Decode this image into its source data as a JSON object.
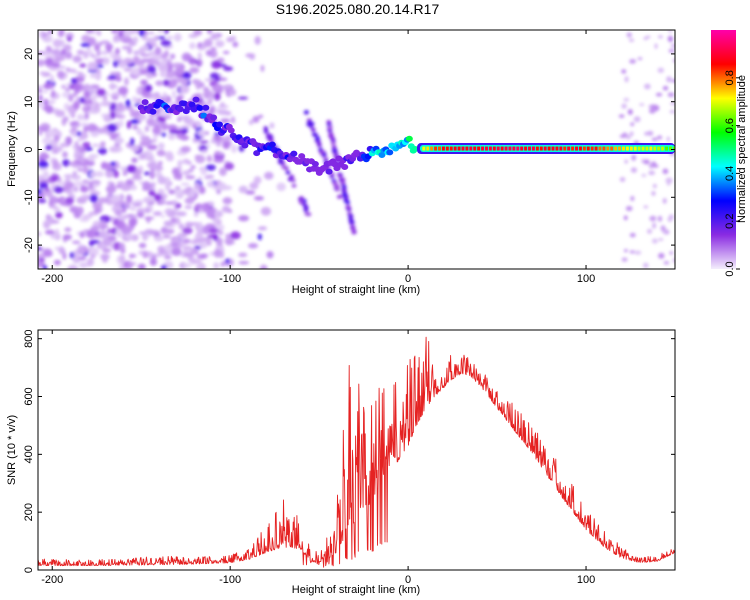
{
  "title": "S196.2025.080.20.14.R17",
  "chart_data": [
    {
      "type": "heatmap",
      "title": "S196.2025.080.20.14.R17",
      "xlabel": "Height of straight line (km)",
      "ylabel": "Frequency (Hz)",
      "xlim": [
        -208,
        150
      ],
      "ylim": [
        -25,
        25
      ],
      "xticks": [
        -200,
        -100,
        0,
        100
      ],
      "yticks": [
        -20,
        -10,
        0,
        10,
        20
      ],
      "grid": false,
      "colorbar": {
        "label": "Normalized spectral amplitude",
        "range": [
          0,
          1
        ],
        "ticks": [
          "0.0",
          "0.2",
          "0.4",
          "0.6",
          "0.8"
        ],
        "colors": [
          "#f4eefc",
          "#8a2be2",
          "#0000ff",
          "#00ffff",
          "#00ff00",
          "#ffff00",
          "#ff0000",
          "#ff00aa"
        ]
      },
      "ridge": {
        "x": [
          -150,
          -140,
          -130,
          -120,
          -110,
          -100,
          -90,
          -80,
          -70,
          -60,
          -50,
          -40,
          -30,
          -20,
          -10,
          0,
          10,
          20,
          40,
          60,
          80,
          100,
          120,
          150
        ],
        "frequency": [
          9,
          9.5,
          8.5,
          9.5,
          6,
          3,
          1.5,
          0.5,
          -1,
          -2,
          -4.5,
          -3,
          -2,
          -1,
          0,
          1.5,
          0,
          0,
          0,
          0,
          0,
          0,
          0,
          0
        ],
        "amplitude": [
          0.35,
          0.4,
          0.3,
          0.4,
          0.3,
          0.35,
          0.35,
          0.4,
          0.35,
          0.3,
          0.25,
          0.25,
          0.3,
          0.45,
          0.55,
          0.6,
          0.75,
          0.85,
          0.9,
          0.9,
          0.88,
          0.85,
          0.75,
          0.6
        ]
      }
    },
    {
      "type": "line",
      "xlabel": "Height of straight line (km)",
      "ylabel": "SNR (10 * v/v)",
      "xlim": [
        -208,
        150
      ],
      "ylim": [
        0,
        830
      ],
      "xticks": [
        -200,
        -100,
        0,
        100
      ],
      "yticks": [
        0,
        200,
        400,
        600,
        800
      ],
      "grid": false,
      "color": "#e52222",
      "envelope": {
        "x": [
          -208,
          -180,
          -160,
          -140,
          -120,
          -100,
          -90,
          -80,
          -70,
          -60,
          -55,
          -50,
          -45,
          -40,
          -35,
          -30,
          -25,
          -20,
          -15,
          -10,
          -5,
          0,
          5,
          10,
          15,
          20,
          25,
          30,
          35,
          40,
          50,
          60,
          70,
          80,
          90,
          100,
          110,
          120,
          130,
          140,
          150
        ],
        "base": [
          15,
          15,
          16,
          18,
          20,
          25,
          35,
          60,
          80,
          70,
          30,
          25,
          40,
          60,
          120,
          160,
          220,
          230,
          300,
          350,
          380,
          420,
          500,
          560,
          600,
          630,
          660,
          680,
          670,
          640,
          560,
          480,
          400,
          310,
          220,
          140,
          80,
          40,
          25,
          30,
          60
        ],
        "peak": [
          40,
          35,
          40,
          50,
          45,
          50,
          80,
          150,
          250,
          200,
          90,
          60,
          150,
          250,
          700,
          760,
          650,
          580,
          650,
          600,
          700,
          720,
          780,
          830,
          750,
          760,
          750,
          750,
          730,
          700,
          630,
          570,
          500,
          420,
          320,
          220,
          140,
          80,
          45,
          50,
          80
        ]
      }
    }
  ]
}
